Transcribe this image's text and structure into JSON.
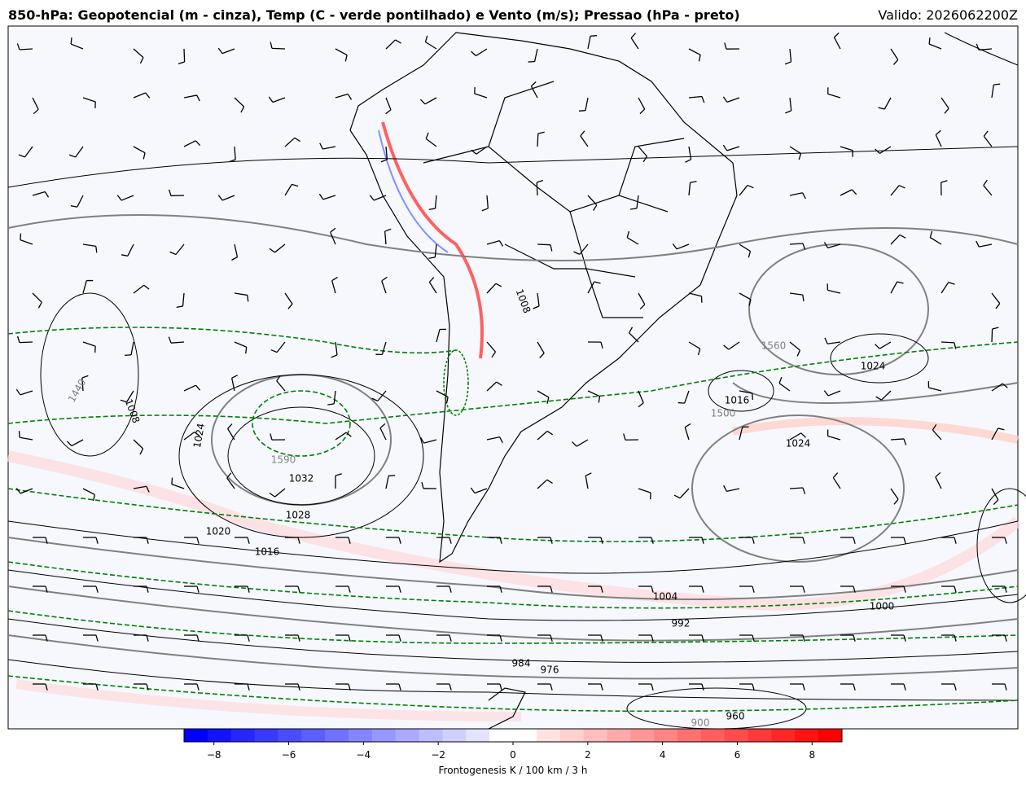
{
  "header": {
    "title": "850-hPa: Geopotencial (m - cinza), Temp (C - verde pontilhado) e Vento (m/s); Pressao (hPa - preto)",
    "valid": "Valido: 2026062200Z"
  },
  "colorbar": {
    "label": "Frontogenesis K / 100 km / 3 h",
    "range": [
      -8.8,
      8.8
    ],
    "ticks": [
      {
        "value": -8,
        "label": "−8"
      },
      {
        "value": -6,
        "label": "−6"
      },
      {
        "value": -4,
        "label": "−4"
      },
      {
        "value": -2,
        "label": "−2"
      },
      0,
      2,
      4,
      6,
      8
    ]
  },
  "contour_labels": [
    "1008",
    "1024",
    "1016",
    "1500",
    "1024",
    "1560",
    "1590",
    "1032",
    "1028",
    "1020",
    "1016",
    "1004",
    "1000",
    "992",
    "1024",
    "1008",
    "1440",
    "960",
    "900",
    "976",
    "984"
  ]
}
